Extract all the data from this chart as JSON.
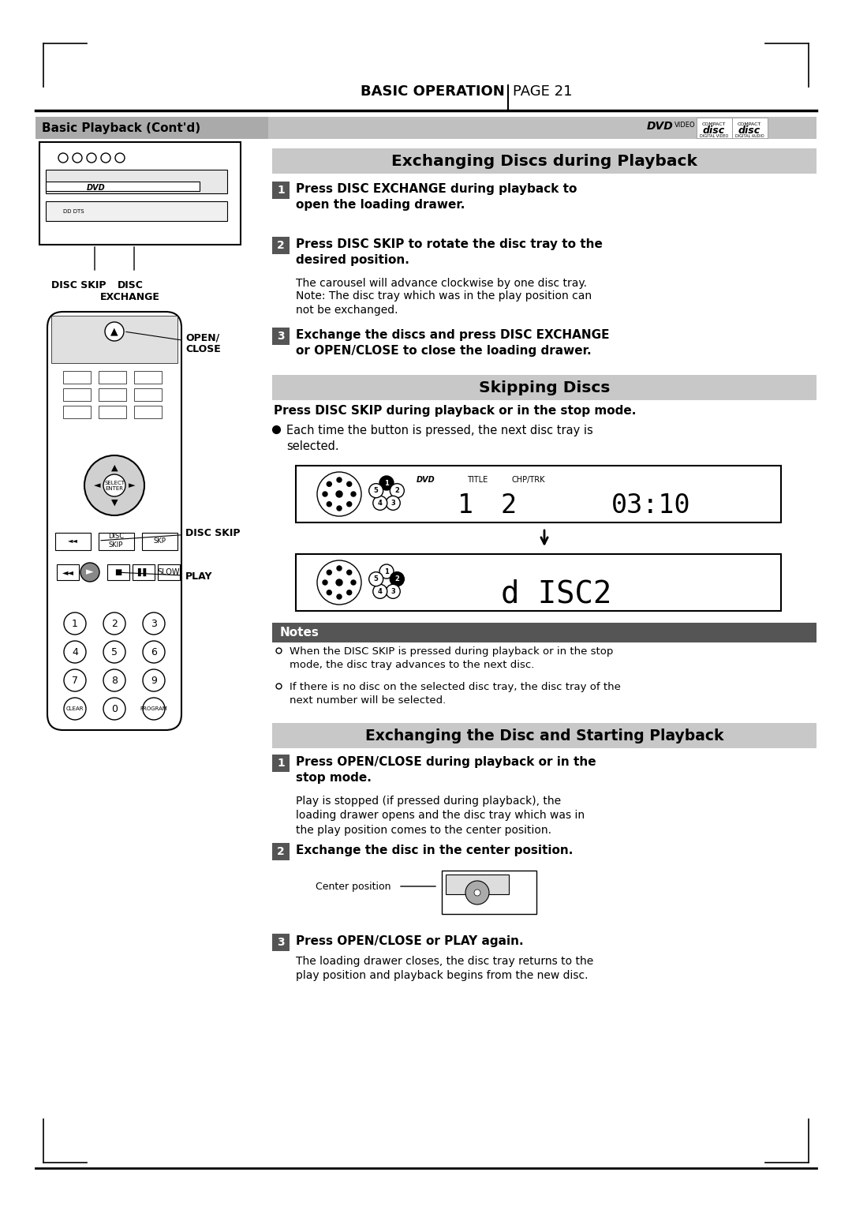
{
  "page_bg": "#ffffff",
  "margin_color": "#000000",
  "header_line_color": "#000000",
  "header_text": "BASIC OPERATION",
  "header_page": "PAGE 21",
  "section_title_bg": "#c8c8c8",
  "section_title_color": "#000000",
  "notes_bg": "#555555",
  "notes_text_color": "#ffffff",
  "step_bg": "#555555",
  "step_text_color": "#ffffff",
  "body_text_color": "#000000",
  "left_panel_title": "Basic Playback (Cont'd)",
  "left_panel_title_bg": "#888888",
  "sections": [
    {
      "title": "Exchanging Discs during Playback",
      "steps": [
        {
          "num": "1",
          "bold": "Press DISC EXCHANGE during playback to open the loading drawer."
        },
        {
          "num": "2",
          "bold": "Press DISC SKIP to rotate the disc tray to the desired position.",
          "normal": "The carousel will advance clockwise by one disc tray.\nNote: The disc tray which was in the play position can not be exchanged."
        },
        {
          "num": "3",
          "bold": "Exchange the discs and press DISC EXCHANGE or OPEN/CLOSE to close the loading drawer."
        }
      ]
    },
    {
      "title": "Skipping Discs",
      "steps": []
    },
    {
      "title": "Exchanging the Disc and Starting Playback",
      "steps": [
        {
          "num": "1",
          "bold": "Press OPEN/CLOSE during playback or in the stop mode.",
          "normal": "Play is stopped (if pressed during playback), the loading drawer opens and the disc tray which was in the play position comes to the center position."
        },
        {
          "num": "2",
          "bold": "Exchange the disc in the center position."
        },
        {
          "num": "3",
          "bold": "Press OPEN/CLOSE or PLAY again.",
          "normal": "The loading drawer closes, the disc tray returns to the play position and playback begins from the new disc."
        }
      ]
    }
  ]
}
